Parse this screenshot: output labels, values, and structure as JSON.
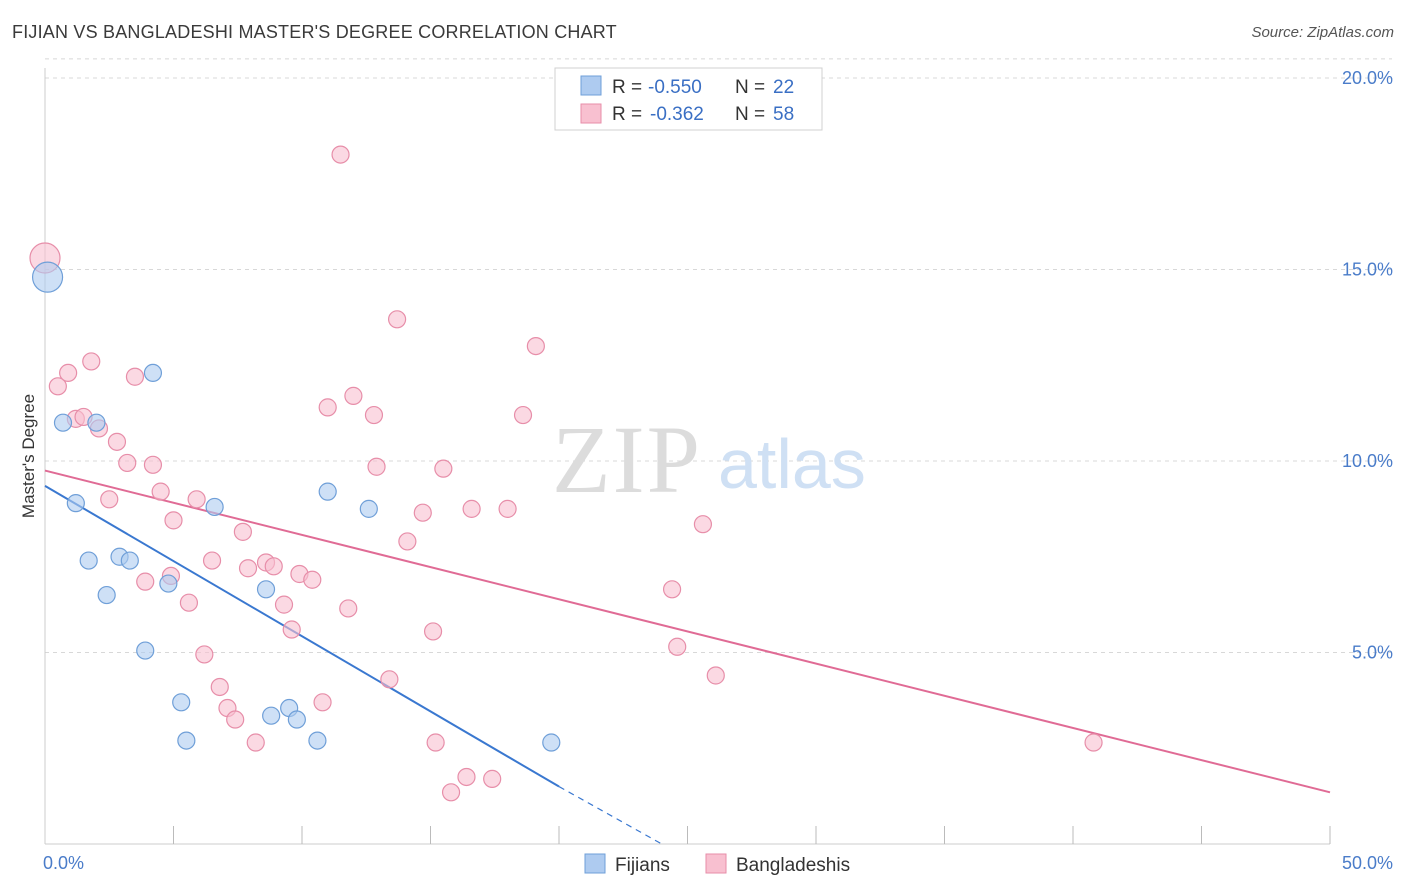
{
  "header": {
    "title": "FIJIAN VS BANGLADESHI MASTER'S DEGREE CORRELATION CHART",
    "source": "Source: ZipAtlas.com"
  },
  "watermark": {
    "zip": "ZIP",
    "atlas": "atlas"
  },
  "legend": {
    "rows": [
      {
        "r_label": "R =",
        "r_value": "-0.550",
        "n_label": "N =",
        "n_value": "22"
      },
      {
        "r_label": "R =",
        "r_value": "-0.362",
        "n_label": "N =",
        "n_value": "58"
      }
    ]
  },
  "colors": {
    "fijians_fill": "#aecbf0",
    "fijians_stroke": "#6f9fd8",
    "fijians_line": "#3a78d0",
    "bangladeshis_fill": "#f8c0d0",
    "bangladeshis_stroke": "#e78ea9",
    "bangladeshis_line": "#e06b95",
    "value_text": "#3a6fc4",
    "grid": "#d8d8d8"
  },
  "chart_data": {
    "type": "scatter",
    "title": "FIJIAN VS BANGLADESHI MASTER'S DEGREE CORRELATION CHART",
    "xlabel": "",
    "ylabel": "Master's Degree",
    "xlim": [
      0,
      50
    ],
    "ylim": [
      0,
      20.5
    ],
    "x_tick_labels": [
      "0.0%",
      "50.0%"
    ],
    "y_ticks": [
      5,
      10,
      15,
      20
    ],
    "y_tick_labels": [
      "5.0%",
      "10.0%",
      "15.0%",
      "20.0%"
    ],
    "grid": true,
    "legend_position": "bottom-center",
    "series": [
      {
        "name": "Fijians",
        "r": -0.55,
        "n": 22,
        "trend": {
          "x0": 0,
          "y0": 9.35,
          "x1": 20,
          "y1": 1.5,
          "dash_to_x": 24,
          "dash_to_y": 0
        },
        "points": [
          {
            "x": 0.1,
            "y": 14.8,
            "big": true
          },
          {
            "x": 0.7,
            "y": 11.0
          },
          {
            "x": 1.2,
            "y": 8.9
          },
          {
            "x": 1.7,
            "y": 7.4
          },
          {
            "x": 2.0,
            "y": 11.0
          },
          {
            "x": 2.4,
            "y": 6.5
          },
          {
            "x": 2.9,
            "y": 7.5
          },
          {
            "x": 3.3,
            "y": 7.4
          },
          {
            "x": 3.9,
            "y": 5.05
          },
          {
            "x": 4.2,
            "y": 12.3
          },
          {
            "x": 4.8,
            "y": 6.8
          },
          {
            "x": 5.3,
            "y": 3.7
          },
          {
            "x": 5.5,
            "y": 2.7
          },
          {
            "x": 6.6,
            "y": 8.8
          },
          {
            "x": 8.6,
            "y": 6.65
          },
          {
            "x": 8.8,
            "y": 3.35
          },
          {
            "x": 9.5,
            "y": 3.55
          },
          {
            "x": 9.8,
            "y": 3.25
          },
          {
            "x": 10.6,
            "y": 2.7
          },
          {
            "x": 11.0,
            "y": 9.2
          },
          {
            "x": 12.6,
            "y": 8.75
          },
          {
            "x": 19.7,
            "y": 2.65
          }
        ]
      },
      {
        "name": "Bangladeshis",
        "r": -0.362,
        "n": 58,
        "trend": {
          "x0": 0,
          "y0": 9.75,
          "x1": 50,
          "y1": 1.35
        },
        "points": [
          {
            "x": 0.0,
            "y": 15.3,
            "big": true
          },
          {
            "x": 0.5,
            "y": 11.95
          },
          {
            "x": 0.9,
            "y": 12.3
          },
          {
            "x": 1.2,
            "y": 11.1
          },
          {
            "x": 1.5,
            "y": 11.15
          },
          {
            "x": 1.8,
            "y": 12.6
          },
          {
            "x": 2.1,
            "y": 10.85
          },
          {
            "x": 2.5,
            "y": 9.0
          },
          {
            "x": 2.8,
            "y": 10.5
          },
          {
            "x": 3.2,
            "y": 9.95
          },
          {
            "x": 3.5,
            "y": 12.2
          },
          {
            "x": 3.9,
            "y": 6.85
          },
          {
            "x": 4.2,
            "y": 9.9
          },
          {
            "x": 4.5,
            "y": 9.2
          },
          {
            "x": 4.9,
            "y": 7.0
          },
          {
            "x": 5.0,
            "y": 8.45
          },
          {
            "x": 5.6,
            "y": 6.3
          },
          {
            "x": 5.9,
            "y": 9.0
          },
          {
            "x": 6.2,
            "y": 4.95
          },
          {
            "x": 6.5,
            "y": 7.4
          },
          {
            "x": 6.8,
            "y": 4.1
          },
          {
            "x": 7.1,
            "y": 3.55
          },
          {
            "x": 7.4,
            "y": 3.25
          },
          {
            "x": 7.7,
            "y": 8.15
          },
          {
            "x": 7.9,
            "y": 7.2
          },
          {
            "x": 8.2,
            "y": 2.65
          },
          {
            "x": 8.6,
            "y": 7.35
          },
          {
            "x": 8.9,
            "y": 7.25
          },
          {
            "x": 9.3,
            "y": 6.25
          },
          {
            "x": 9.6,
            "y": 5.6
          },
          {
            "x": 9.9,
            "y": 7.05
          },
          {
            "x": 10.4,
            "y": 6.9
          },
          {
            "x": 10.8,
            "y": 3.7
          },
          {
            "x": 11.0,
            "y": 11.4
          },
          {
            "x": 11.5,
            "y": 18.0
          },
          {
            "x": 11.8,
            "y": 6.15
          },
          {
            "x": 12.0,
            "y": 11.7
          },
          {
            "x": 12.8,
            "y": 11.2
          },
          {
            "x": 12.9,
            "y": 9.85
          },
          {
            "x": 13.4,
            "y": 4.3
          },
          {
            "x": 13.7,
            "y": 13.7
          },
          {
            "x": 14.1,
            "y": 7.9
          },
          {
            "x": 14.7,
            "y": 8.65
          },
          {
            "x": 15.1,
            "y": 5.55
          },
          {
            "x": 15.2,
            "y": 2.65
          },
          {
            "x": 15.5,
            "y": 9.8
          },
          {
            "x": 15.8,
            "y": 1.35
          },
          {
            "x": 16.4,
            "y": 1.75
          },
          {
            "x": 16.6,
            "y": 8.75
          },
          {
            "x": 17.4,
            "y": 1.7
          },
          {
            "x": 18.0,
            "y": 8.75
          },
          {
            "x": 18.6,
            "y": 11.2
          },
          {
            "x": 19.1,
            "y": 13.0
          },
          {
            "x": 24.4,
            "y": 6.65
          },
          {
            "x": 24.6,
            "y": 5.15
          },
          {
            "x": 25.6,
            "y": 8.35
          },
          {
            "x": 26.1,
            "y": 4.4
          },
          {
            "x": 40.8,
            "y": 2.65
          }
        ]
      }
    ]
  }
}
